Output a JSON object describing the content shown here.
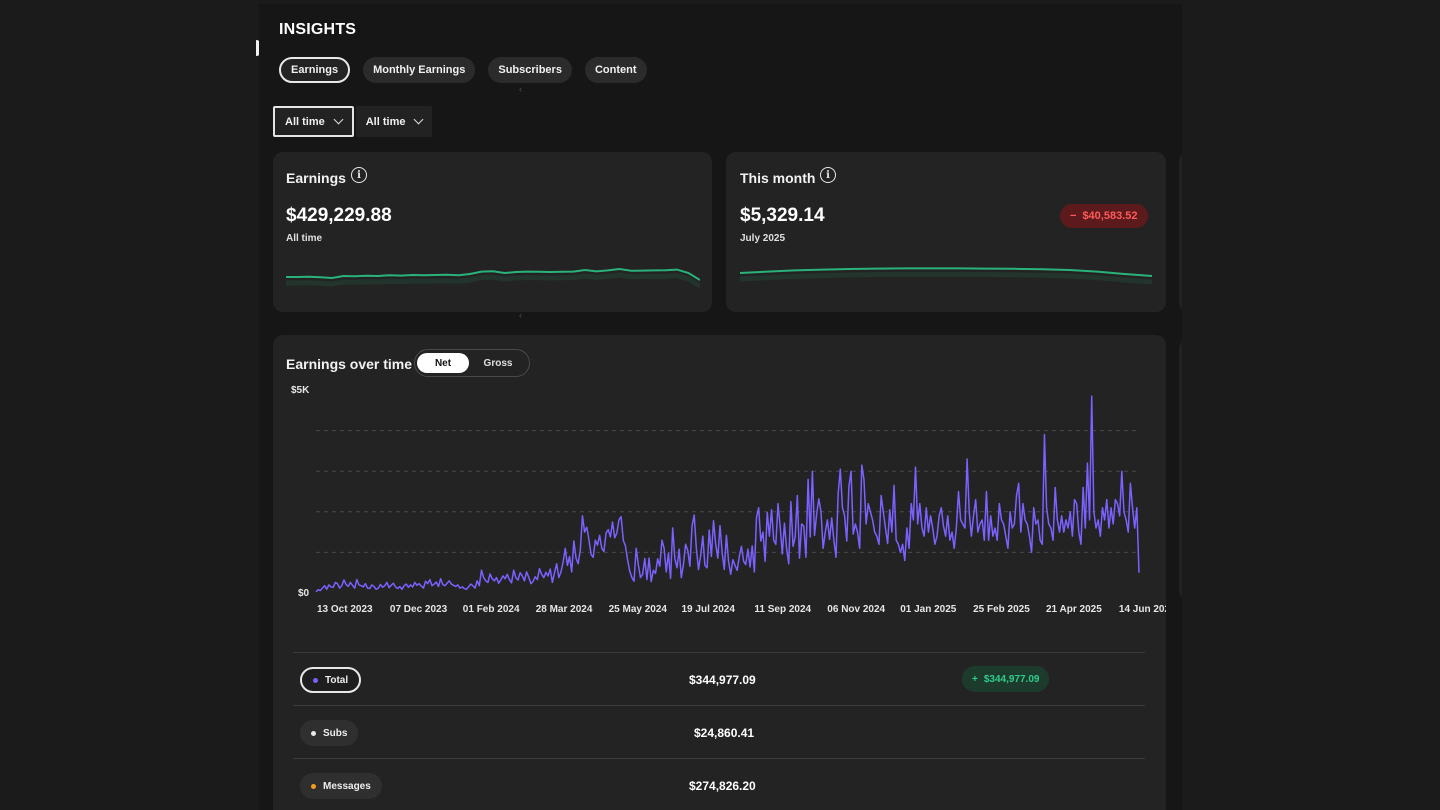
{
  "page": {
    "title": "INSIGHTS"
  },
  "tabs": [
    {
      "label": "Earnings",
      "active": true
    },
    {
      "label": "Monthly Earnings",
      "active": false
    },
    {
      "label": "Subscribers",
      "active": false
    },
    {
      "label": "Content",
      "active": false
    }
  ],
  "filters": [
    {
      "label": "All time",
      "active": true
    },
    {
      "label": "All time",
      "active": false
    }
  ],
  "cards": {
    "earnings": {
      "title": "Earnings",
      "info_icon": "info-icon",
      "value": "$429,229.88",
      "sub": "All time",
      "spark": [
        0.35,
        0.35,
        0.36,
        0.34,
        0.3,
        0.4,
        0.39,
        0.41,
        0.4,
        0.44,
        0.42,
        0.45,
        0.44,
        0.45,
        0.46,
        0.44,
        0.5,
        0.62,
        0.64,
        0.55,
        0.6,
        0.62,
        0.61,
        0.6,
        0.61,
        0.62,
        0.7,
        0.63,
        0.68,
        0.75,
        0.66,
        0.67,
        0.68,
        0.69,
        0.72,
        0.55,
        0.2
      ],
      "spark_color": "#29b37a"
    },
    "this_month": {
      "title": "This month",
      "info_icon": "info-icon",
      "value": "$5,329.14",
      "sub": "July 2025",
      "badge": "$40,583.52",
      "badge_sign": "−",
      "spark": [
        0.55,
        0.62,
        0.68,
        0.72,
        0.75,
        0.77,
        0.78,
        0.78,
        0.78,
        0.77,
        0.76,
        0.74,
        0.7,
        0.62,
        0.5,
        0.4
      ],
      "spark_color": "#29b37a"
    }
  },
  "earnings_over_time": {
    "title": "Earnings over time",
    "toggle": {
      "on": "Net",
      "off": "Gross"
    }
  },
  "chart_data": {
    "type": "line",
    "y_labels": [
      "$5K",
      "$0"
    ],
    "ylim": [
      0,
      5000
    ],
    "grid": "dashed-horizontal",
    "x_tick_labels": [
      "13 Oct 2023",
      "07 Dec 2023",
      "01 Feb 2024",
      "28 Mar 2024",
      "25 May 2024",
      "19 Jul 2024",
      "11 Sep 2024",
      "06 Nov 2024",
      "01 Jan 2025",
      "25 Feb 2025",
      "21 Apr 2025",
      "14 Jun 202"
    ],
    "series_color": "#7b61ff",
    "series": [
      {
        "values": [
          30,
          80,
          60,
          120,
          180,
          90,
          200,
          150,
          140,
          260,
          230,
          120,
          180,
          320,
          210,
          160,
          260,
          190,
          120,
          330,
          200,
          180,
          150,
          230,
          120,
          110,
          200,
          160,
          90,
          120,
          210,
          140,
          180,
          260,
          130,
          190,
          240,
          150,
          110,
          160,
          90,
          180,
          220,
          140,
          200,
          150,
          260,
          190,
          230,
          170,
          120,
          290,
          230,
          330,
          180,
          220,
          270,
          160,
          350,
          210,
          180,
          240,
          300,
          220,
          190,
          160,
          200,
          120,
          150,
          110,
          90,
          150,
          220,
          180,
          120,
          300,
          180,
          560,
          380,
          300,
          260,
          470,
          350,
          300,
          380,
          240,
          320,
          420,
          350,
          460,
          330,
          250,
          560,
          380,
          320,
          500,
          420,
          300,
          520,
          390,
          230,
          280,
          400,
          330,
          600,
          460,
          380,
          510,
          420,
          590,
          260,
          500,
          720,
          380,
          520,
          760,
          1100,
          680,
          900,
          520,
          1280,
          860,
          720,
          1060,
          1900,
          1500,
          1620,
          1320,
          950,
          880,
          1300,
          1180,
          1420,
          1100,
          1020,
          1480,
          1560,
          1380,
          1750,
          1360,
          1480,
          1800,
          1880,
          1300,
          1160,
          820,
          540,
          380,
          290,
          1100,
          700,
          380,
          460,
          850,
          330,
          860,
          280,
          560,
          480,
          840,
          660,
          1300,
          1100,
          520,
          980,
          360,
          1600,
          850,
          620,
          1080,
          380,
          700,
          1200,
          1050,
          660,
          1650,
          1920,
          1100,
          580,
          920,
          1400,
          680,
          620,
          1550,
          900,
          1780,
          1200,
          860,
          1660,
          1000,
          580,
          1420,
          780,
          460,
          820,
          680,
          560,
          900,
          1150,
          780,
          700,
          1080,
          640,
          1160,
          520,
          1860,
          2100,
          1280,
          1500,
          780,
          1980,
          1400,
          2050,
          1300,
          1200,
          2200,
          1640,
          960,
          1720,
          1100,
          720,
          2250,
          1150,
          1380,
          2400,
          860,
          1700,
          1650,
          880,
          2800,
          1380,
          3000,
          1420,
          1950,
          2320,
          2000,
          1100,
          1500,
          1800,
          1320,
          1850,
          1300,
          880,
          2450,
          3050,
          2100,
          1900,
          1280,
          2620,
          3000,
          1450,
          1700,
          1500,
          1100,
          3150,
          2800,
          1700,
          2200,
          2000,
          1800,
          1500,
          1400,
          1200,
          2400,
          2000,
          1600,
          1220,
          2050,
          1500,
          2650,
          1300,
          1200,
          1000,
          1200,
          800,
          1600,
          1100,
          2200,
          1800,
          3100,
          1700,
          2200,
          1600,
          1400,
          2100,
          1500,
          1900,
          1600,
          1200,
          1400,
          1900,
          2100,
          1650,
          1400,
          1900,
          1300,
          1500,
          1100,
          1600,
          2500,
          1800,
          1700,
          1600,
          3300,
          2000,
          1400,
          1900,
          2300,
          1500,
          1700,
          1800,
          1300,
          2500,
          1300,
          1900,
          1400,
          1600,
          1300,
          2200,
          1800,
          1700,
          1400,
          1100,
          2000,
          1600,
          1700,
          2400,
          2700,
          1500,
          2200,
          1800,
          1700,
          1400,
          1000,
          2100,
          1700,
          1800,
          1300,
          1200,
          3900,
          2100,
          1700,
          1600,
          1300,
          2600,
          1800,
          1500,
          1900,
          1500,
          1800,
          1600,
          2000,
          1400,
          2300,
          2200,
          1500,
          1200,
          2600,
          1600,
          3200,
          1800,
          4850,
          2000,
          1600,
          1800,
          1400,
          2100,
          1800,
          2300,
          1600,
          2100,
          1700,
          2300,
          2200,
          1900,
          3000,
          2000,
          1800,
          1500,
          2700,
          2100,
          1600,
          2100,
          500
        ]
      }
    ]
  },
  "breakdown": [
    {
      "label": "Total",
      "dot": "#7b61ff",
      "value": "$344,977.09",
      "badge": "$344,977.09",
      "badge_sign": "+",
      "active": true
    },
    {
      "label": "Subs",
      "dot": "#e8e8e8",
      "value": "$24,860.41",
      "active": false
    },
    {
      "label": "Messages",
      "dot": "#f0a020",
      "value": "$274,826.20",
      "active": false
    }
  ]
}
